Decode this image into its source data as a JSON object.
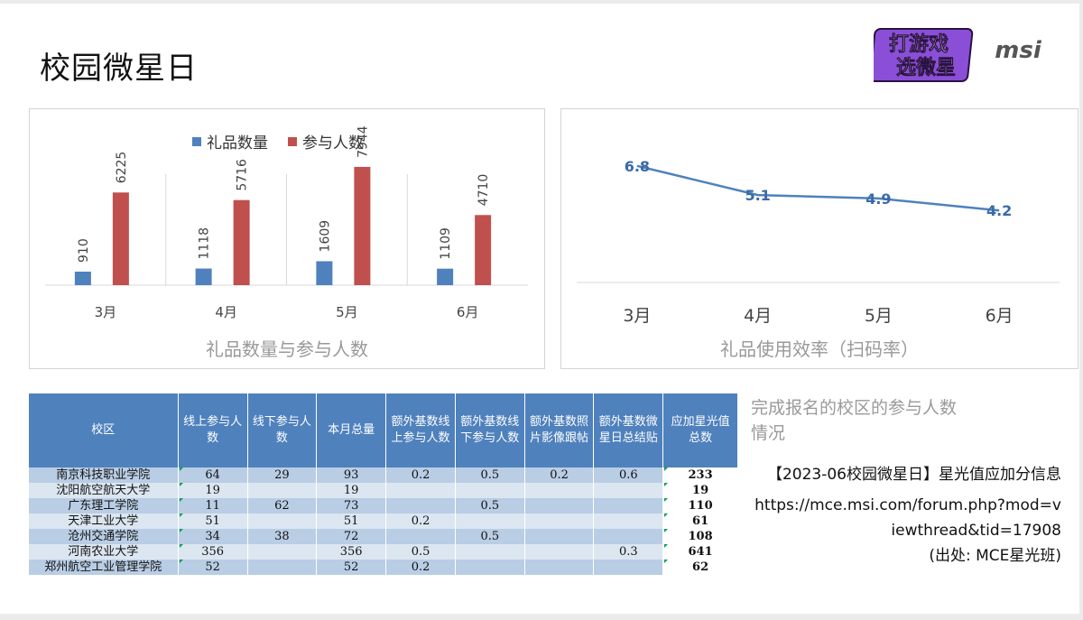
{
  "page": {
    "title": "校园微星日",
    "logo_badge_line1": "打游戏",
    "logo_badge_line2": "选微星",
    "brand": "msi"
  },
  "chart_data": [
    {
      "type": "bar",
      "title": "礼品数量与参与人数",
      "categories": [
        "3月",
        "4月",
        "5月",
        "6月"
      ],
      "series": [
        {
          "name": "礼品数量",
          "color": "#4f81bd",
          "values": [
            910,
            1118,
            1609,
            1109
          ]
        },
        {
          "name": "参与人数",
          "color": "#c0504d",
          "values": [
            6225,
            5716,
            7944,
            4710
          ]
        }
      ],
      "ylim": [
        0,
        10000
      ],
      "legend": "top",
      "grid": false
    },
    {
      "type": "line",
      "title": "礼品使用效率（扫码率）",
      "categories": [
        "3月",
        "4月",
        "5月",
        "6月"
      ],
      "series": [
        {
          "color": "#4f81bd",
          "values": [
            6.8,
            5.1,
            4.9,
            4.2
          ]
        }
      ],
      "ylim": [
        0,
        8
      ],
      "grid": false
    }
  ],
  "table": {
    "headers": [
      "校区",
      "线上参与人数",
      "线下参与人数",
      "本月总量",
      "额外基数线上参与人数",
      "额外基数线下参与人数",
      "额外基数照片影像跟帖",
      "额外基数微星日总结贴",
      "应加星光值总数"
    ],
    "rows": [
      [
        "南京科技职业学院",
        "64",
        "29",
        "93",
        "0.2",
        "0.5",
        "0.2",
        "0.6",
        "233"
      ],
      [
        "沈阳航空航天大学",
        "19",
        "",
        "19",
        "",
        "",
        "",
        "",
        "19"
      ],
      [
        "广东理工学院",
        "11",
        "62",
        "73",
        "",
        "0.5",
        "",
        "",
        "110"
      ],
      [
        "天津工业大学",
        "51",
        "",
        "51",
        "0.2",
        "",
        "",
        "",
        "61"
      ],
      [
        "沧州交通学院",
        "34",
        "38",
        "72",
        "",
        "0.5",
        "",
        "",
        "108"
      ],
      [
        "河南农业大学",
        "356",
        "",
        "356",
        "0.5",
        "",
        "",
        "0.3",
        "641"
      ],
      [
        "郑州航空工业管理学院",
        "52",
        "",
        "52",
        "0.2",
        "",
        "",
        "",
        "62"
      ]
    ]
  },
  "note": "完成报名的校区的参与人数情况",
  "info": {
    "line1": "【2023-06校园微星日】星光值应加分信息",
    "url": "https://mce.msi.com/forum.php?mod=viewthread&tid=17908",
    "source": "(出处: MCE星光班)"
  },
  "colors": {
    "accent_blue": "#4f81bd",
    "accent_red": "#c0504d",
    "logo_purple": "#8a4fd6"
  }
}
